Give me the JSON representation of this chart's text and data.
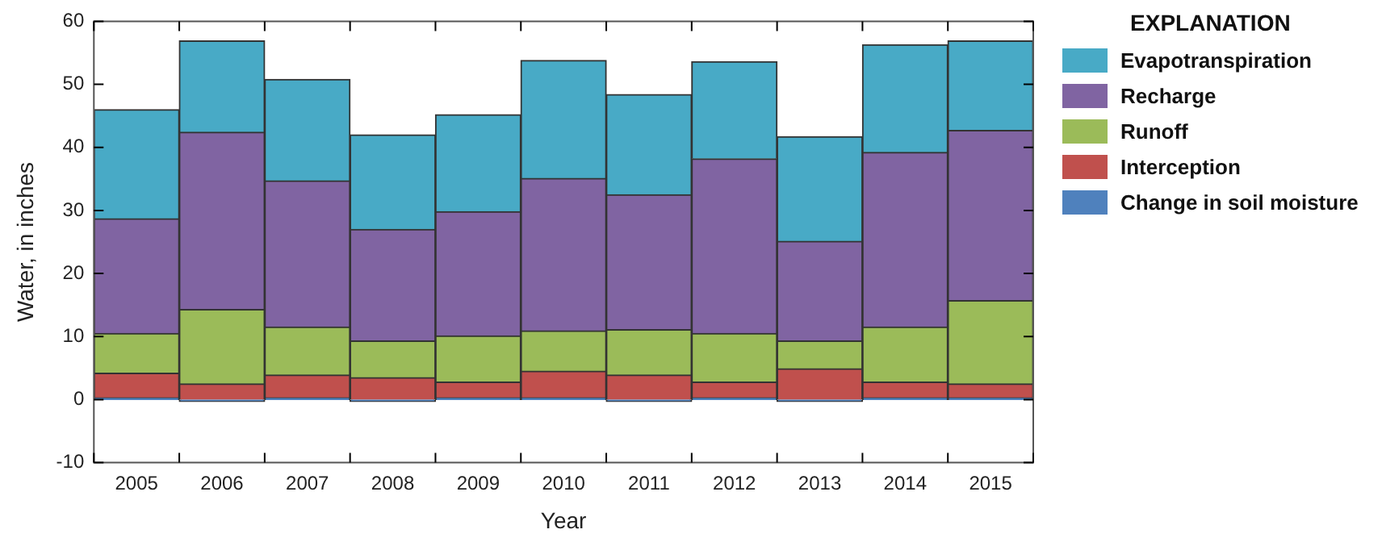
{
  "chart_data": {
    "type": "bar",
    "stacked": true,
    "xlabel": "Year",
    "ylabel": "Water, in inches",
    "legend_title": "EXPLANATION",
    "legend": "right",
    "grid": false,
    "categories": [
      "2005",
      "2006",
      "2007",
      "2008",
      "2009",
      "2010",
      "2011",
      "2012",
      "2013",
      "2014",
      "2015"
    ],
    "ylim": [
      -10,
      60
    ],
    "yticks": [
      -10,
      0,
      10,
      20,
      30,
      40,
      50,
      60
    ],
    "series": [
      {
        "name": "Change in soil moisture",
        "color": "#4f81bd",
        "values": [
          0.3,
          -0.3,
          0.3,
          -0.3,
          0.3,
          0.3,
          -0.3,
          0.3,
          -0.3,
          0.3,
          0.3
        ]
      },
      {
        "name": "Interception",
        "color": "#c0504d",
        "values": [
          3.9,
          2.5,
          3.6,
          3.5,
          2.5,
          4.2,
          3.9,
          2.5,
          4.9,
          2.5,
          2.2
        ]
      },
      {
        "name": "Runoff",
        "color": "#9bbb59",
        "values": [
          6.3,
          11.8,
          7.6,
          5.8,
          7.3,
          6.4,
          7.2,
          7.7,
          4.4,
          8.7,
          13.2
        ]
      },
      {
        "name": "Recharge",
        "color": "#8064a2",
        "values": [
          18.2,
          28.1,
          23.2,
          17.7,
          19.7,
          24.2,
          21.4,
          27.7,
          15.8,
          27.7,
          27.0
        ]
      },
      {
        "name": "Evapotranspiration",
        "color": "#48aac6",
        "values": [
          17.3,
          14.5,
          16.1,
          15.0,
          15.4,
          18.7,
          15.9,
          15.4,
          16.6,
          17.1,
          14.2
        ]
      }
    ]
  }
}
